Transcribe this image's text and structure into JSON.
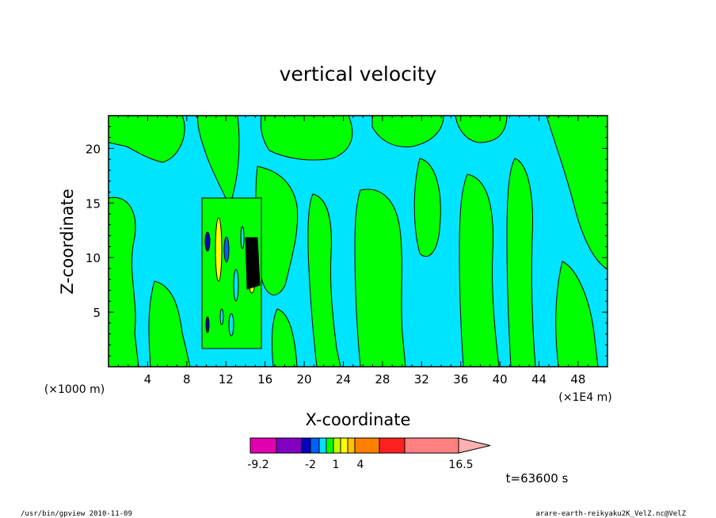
{
  "chart_data": {
    "type": "heatmap",
    "title": "vertical velocity",
    "xlabel": "X-coordinate",
    "ylabel": "Z-coordinate",
    "x_unit_left": "(×1000 m)",
    "x_unit_right": "(×1E4 m)",
    "xlim": [
      0,
      51
    ],
    "ylim": [
      0,
      23
    ],
    "x_ticks": [
      4,
      8,
      12,
      16,
      20,
      24,
      28,
      32,
      36,
      40,
      44,
      48
    ],
    "y_ticks": [
      5,
      10,
      15,
      20
    ],
    "colorbar": {
      "colors": [
        "#e000b0",
        "#8000c0",
        "#0000c0",
        "#0060ff",
        "#00e0ff",
        "#00ff00",
        "#c0ff00",
        "#ffff00",
        "#ffc000",
        "#ff8000",
        "#ff2020",
        "#ff8080",
        "#ffb0b0"
      ],
      "labels": [
        {
          "text": "-9.2",
          "value": -9.2
        },
        {
          "text": "-2",
          "value": -2
        },
        {
          "text": "1",
          "value": 1
        },
        {
          "text": "4",
          "value": 4
        },
        {
          "text": "16.5",
          "value": 16.5
        }
      ]
    },
    "time_label": "t=63600 s",
    "grid": false,
    "legend": "bottom-colorbar"
  },
  "footer": {
    "left": "/usr/bin/gpview   2010-11-09",
    "right": "arare-earth-reikyaku2K_VelZ.nc@VelZ"
  },
  "colors": {
    "background_field": "#00e5ff",
    "updraft_field": "#00ff00",
    "strong_updraft": "#ffff00",
    "downdraft": "#0000c0",
    "contour": "#000000"
  }
}
